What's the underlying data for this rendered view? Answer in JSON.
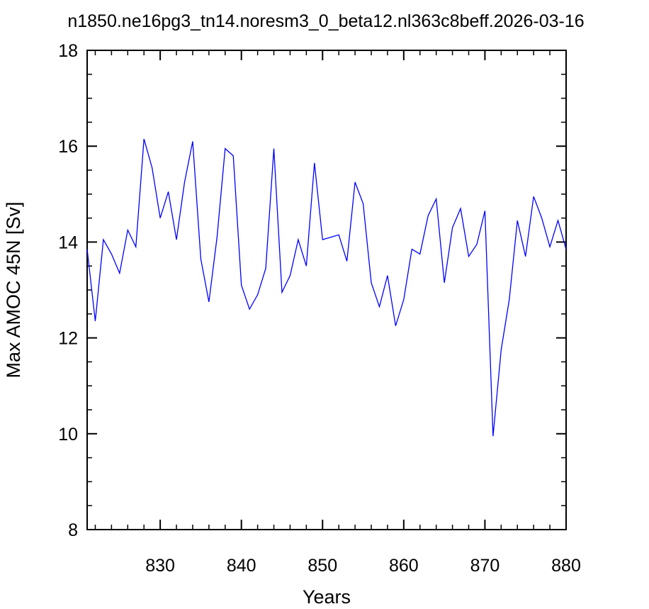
{
  "chart_data": {
    "type": "line",
    "title": "n1850.ne16pg3_tn14.noresm3_0_beta12.nl363c8beff.2026-03-16",
    "xlabel": "Years",
    "ylabel": "Max AMOC 45N [Sv]",
    "xlim": [
      821,
      880
    ],
    "ylim": [
      8,
      18
    ],
    "x_ticks": [
      830,
      840,
      850,
      860,
      870,
      880
    ],
    "y_ticks": [
      8,
      10,
      12,
      14,
      16,
      18
    ],
    "x_minor_step": 2,
    "y_minor_step": 0.5,
    "grid": false,
    "line_color": "#0000ff",
    "series": [
      {
        "x": [
          821,
          822,
          823,
          824,
          825,
          826,
          827,
          828,
          829,
          830,
          831,
          832,
          833,
          834,
          835,
          836,
          837,
          838,
          839,
          840,
          841,
          842,
          843,
          844,
          845,
          846,
          847,
          848,
          849,
          850,
          851,
          852,
          853,
          854,
          855,
          856,
          857,
          858,
          859,
          860,
          861,
          862,
          863,
          864,
          865,
          866,
          867,
          868,
          869,
          870,
          871,
          872,
          873,
          874,
          875,
          876,
          877,
          878,
          879,
          880
        ],
        "values": [
          13.85,
          12.35,
          14.05,
          13.75,
          13.35,
          14.25,
          13.9,
          16.15,
          15.55,
          14.5,
          15.05,
          14.05,
          15.25,
          16.1,
          13.65,
          12.75,
          14.1,
          15.95,
          15.8,
          13.1,
          12.6,
          12.9,
          13.45,
          15.95,
          12.95,
          13.3,
          14.05,
          13.5,
          15.65,
          14.05,
          14.1,
          14.15,
          13.6,
          15.25,
          14.8,
          13.15,
          12.65,
          13.3,
          12.25,
          12.8,
          13.85,
          13.75,
          14.55,
          14.9,
          13.15,
          14.3,
          14.7,
          13.7,
          13.95,
          14.65,
          9.95,
          11.75,
          12.8,
          14.45,
          13.7,
          14.95,
          14.5,
          13.9,
          14.45,
          13.85
        ]
      }
    ]
  }
}
